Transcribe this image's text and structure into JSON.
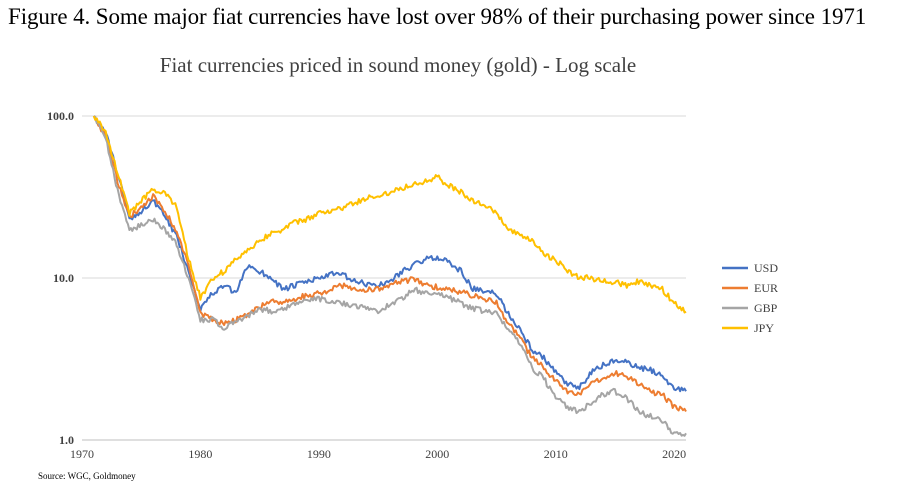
{
  "figure": {
    "caption": "Figure 4. Some major fiat currencies have lost over 98% of their purchasing power since 1971"
  },
  "chart_data": {
    "type": "line",
    "title": "Fiat currencies priced in sound money (gold) - Log scale",
    "yscale": "log",
    "ylim": [
      1.0,
      100.0
    ],
    "xlim": [
      1970,
      2021
    ],
    "y_ticks": [
      {
        "value": 100,
        "label": "100.0"
      },
      {
        "value": 10,
        "label": "10.0"
      },
      {
        "value": 1,
        "label": "1.0"
      }
    ],
    "x_ticks": [
      {
        "value": 1970,
        "label": "1970"
      },
      {
        "value": 1980,
        "label": "1980"
      },
      {
        "value": 1990,
        "label": "1990"
      },
      {
        "value": 2000,
        "label": "2000"
      },
      {
        "value": 2010,
        "label": "2010"
      },
      {
        "value": 2020,
        "label": "2020"
      }
    ],
    "gridlines": "horizontal",
    "legend_position": "right",
    "series": [
      {
        "name": "USD",
        "color": "#4472C4",
        "x": [
          1971,
          1972,
          1973,
          1974,
          1975,
          1976,
          1977,
          1978,
          1979,
          1980,
          1981,
          1982,
          1983,
          1984,
          1985,
          1986,
          1987,
          1988,
          1989,
          1990,
          1991,
          1992,
          1993,
          1994,
          1995,
          1996,
          1997,
          1998,
          1999,
          2000,
          2001,
          2002,
          2003,
          2004,
          2005,
          2006,
          2007,
          2008,
          2009,
          2010,
          2011,
          2012,
          2013,
          2014,
          2015,
          2016,
          2017,
          2018,
          2019,
          2020,
          2021
        ],
        "values": [
          100,
          78,
          45,
          23,
          26,
          30,
          24,
          18,
          11,
          6.5,
          8,
          9,
          8,
          12,
          11,
          10,
          8.5,
          9,
          9.5,
          10,
          10.5,
          10.5,
          9.5,
          9.2,
          9.0,
          9.5,
          11,
          12,
          13,
          13.5,
          12.5,
          11,
          8.6,
          8.2,
          8.0,
          6.0,
          4.8,
          3.6,
          3.2,
          2.6,
          2.2,
          2.1,
          2.6,
          2.9,
          3.1,
          3.0,
          2.8,
          2.7,
          2.5,
          2.1,
          2.0
        ]
      },
      {
        "name": "EUR",
        "color": "#ED7D31",
        "x": [
          1971,
          1972,
          1973,
          1974,
          1975,
          1976,
          1977,
          1978,
          1979,
          1980,
          1981,
          1982,
          1983,
          1984,
          1985,
          1986,
          1987,
          1988,
          1989,
          1990,
          1991,
          1992,
          1993,
          1994,
          1995,
          1996,
          1997,
          1998,
          1999,
          2000,
          2001,
          2002,
          2003,
          2004,
          2005,
          2006,
          2007,
          2008,
          2009,
          2010,
          2011,
          2012,
          2013,
          2014,
          2015,
          2016,
          2017,
          2018,
          2019,
          2020,
          2021
        ],
        "values": [
          100,
          75,
          40,
          24,
          27,
          32,
          26,
          19,
          12,
          6.0,
          5.5,
          5.3,
          5.5,
          6.0,
          6.5,
          7.5,
          7.0,
          7.5,
          7.8,
          8.0,
          8.5,
          9.0,
          8.5,
          8.4,
          8.6,
          9.0,
          9.5,
          9.8,
          9.0,
          8.8,
          8.5,
          8.2,
          7.8,
          7.5,
          7.0,
          5.2,
          4.3,
          3.2,
          2.8,
          2.3,
          2.0,
          1.9,
          2.2,
          2.4,
          2.6,
          2.5,
          2.2,
          2.0,
          1.9,
          1.6,
          1.5
        ]
      },
      {
        "name": "GBP",
        "color": "#A5A5A5",
        "x": [
          1971,
          1972,
          1973,
          1974,
          1975,
          1976,
          1977,
          1978,
          1979,
          1980,
          1981,
          1982,
          1983,
          1984,
          1985,
          1986,
          1987,
          1988,
          1989,
          1990,
          1991,
          1992,
          1993,
          1994,
          1995,
          1996,
          1997,
          1998,
          1999,
          2000,
          2001,
          2002,
          2003,
          2004,
          2005,
          2006,
          2007,
          2008,
          2009,
          2010,
          2011,
          2012,
          2013,
          2014,
          2015,
          2016,
          2017,
          2018,
          2019,
          2020,
          2021
        ],
        "values": [
          100,
          72,
          35,
          20,
          21,
          23,
          20,
          16,
          10,
          5.5,
          5.6,
          4.8,
          5.5,
          5.8,
          6.5,
          6.2,
          6.5,
          7.0,
          7.2,
          7.5,
          7.0,
          7.0,
          6.8,
          6.5,
          6.3,
          6.8,
          7.5,
          8.5,
          8.0,
          8.2,
          7.5,
          7.0,
          6.5,
          6.2,
          6.0,
          4.8,
          4.0,
          2.8,
          2.4,
          1.8,
          1.6,
          1.5,
          1.7,
          1.9,
          2.0,
          1.8,
          1.5,
          1.4,
          1.3,
          1.1,
          1.1
        ]
      },
      {
        "name": "JPY",
        "color": "#FFC000",
        "x": [
          1971,
          1972,
          1973,
          1974,
          1975,
          1976,
          1977,
          1978,
          1979,
          1980,
          1981,
          1982,
          1983,
          1984,
          1985,
          1986,
          1987,
          1988,
          1989,
          1990,
          1991,
          1992,
          1993,
          1994,
          1995,
          1996,
          1997,
          1998,
          1999,
          2000,
          2001,
          2002,
          2003,
          2004,
          2005,
          2006,
          2007,
          2008,
          2009,
          2010,
          2011,
          2012,
          2013,
          2014,
          2015,
          2016,
          2017,
          2018,
          2019,
          2020,
          2021
        ],
        "values": [
          100,
          80,
          45,
          25,
          30,
          35,
          33,
          28,
          13,
          7.5,
          10,
          11,
          13,
          15,
          17,
          19,
          20,
          22,
          23,
          25,
          26,
          27,
          29,
          31,
          32,
          34,
          36,
          38,
          40,
          42,
          37,
          34,
          30,
          28,
          25,
          20,
          18,
          17,
          14,
          13,
          11,
          10,
          10,
          9.5,
          9.5,
          9.0,
          9.5,
          9.0,
          8.5,
          7.0,
          6.2
        ]
      }
    ],
    "source": "Source: WGC, Goldmoney"
  }
}
